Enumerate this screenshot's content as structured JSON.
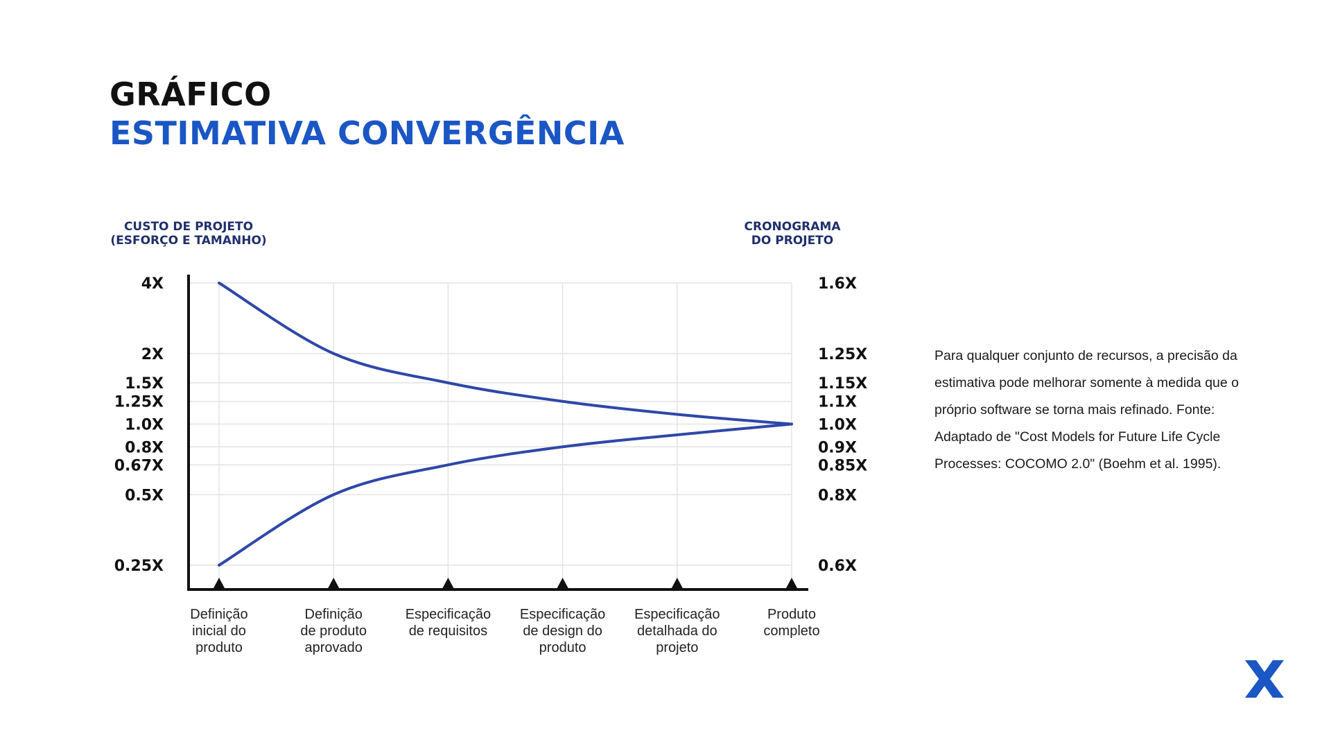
{
  "header": {
    "line1": "GRÁFICO",
    "line2": "ESTIMATIVA CONVERGÊNCIA"
  },
  "caption": "Para qualquer conjunto de recursos, a precisão da estimativa pode melhorar somente à medida que o próprio software se torna mais refinado. Fonte: Adaptado de \"Cost Models for Future Life Cycle Processes: COCOMO 2.0\" (Boehm et al. 1995).",
  "logo": {
    "icon": "x-logo-icon",
    "color": "#1a56c4"
  },
  "chart_data": {
    "type": "line",
    "y_scale": "log",
    "grid": true,
    "left_axis_title": [
      "CUSTO DE PROJETO",
      "(ESFORÇO E TAMANHO)"
    ],
    "right_axis_title": [
      "CRONOGRAMA",
      "DO PROJETO"
    ],
    "left_ticks": [
      {
        "value": 4,
        "label": "4X"
      },
      {
        "value": 2,
        "label": "2X"
      },
      {
        "value": 1.5,
        "label": "1.5X"
      },
      {
        "value": 1.25,
        "label": "1.25X"
      },
      {
        "value": 1.0,
        "label": "1.0X"
      },
      {
        "value": 0.8,
        "label": "0.8X"
      },
      {
        "value": 0.67,
        "label": "0.67X"
      },
      {
        "value": 0.5,
        "label": "0.5X"
      },
      {
        "value": 0.25,
        "label": "0.25X"
      }
    ],
    "right_tick_labels": [
      "1.6X",
      "1.25X",
      "1.15X",
      "1.1X",
      "1.0X",
      "0.9X",
      "0.85X",
      "0.8X",
      "0.6X"
    ],
    "categories": [
      "Definição\ninicial do\nproduto",
      "Definição\nde produto\naprovado",
      "Especificação\nde requisitos",
      "Especificação\nde design do\nproduto",
      "Especificação\ndetalhada do\nprojeto",
      "Produto\ncompleto"
    ],
    "series": [
      {
        "values": [
          4,
          2,
          1.5,
          1.25,
          1.1,
          1.0
        ]
      },
      {
        "values": [
          0.25,
          0.5,
          0.67,
          0.8,
          0.9,
          1.0
        ]
      }
    ],
    "line_color": "#2e47a8",
    "grid_color": "#e3e3e3",
    "axis_color": "#111111"
  }
}
